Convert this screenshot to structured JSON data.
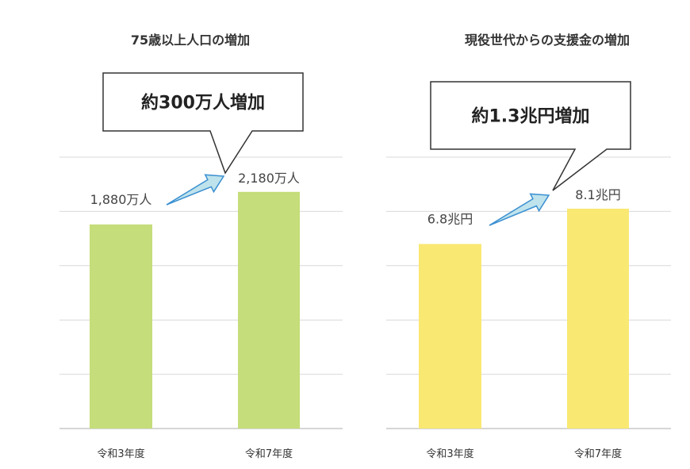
{
  "chart_data": [
    {
      "type": "bar",
      "title": "75歳以上人口の増加",
      "callout": "約300万人増加",
      "categories": [
        "令和3年度",
        "令和7年度"
      ],
      "values": [
        1880,
        2180
      ],
      "value_labels": [
        "1,880万人",
        "2,180万人"
      ],
      "unit": "万人",
      "ylim": [
        0,
        2500
      ],
      "grid": true,
      "color": "#c5dd7a",
      "xlabel": "",
      "ylabel": ""
    },
    {
      "type": "bar",
      "title": "現役世代からの支援金の増加",
      "callout": "約1.3兆円増加",
      "categories": [
        "令和3年度",
        "令和7年度"
      ],
      "values": [
        6.8,
        8.1
      ],
      "value_labels": [
        "6.8兆円",
        "8.1兆円"
      ],
      "unit": "兆円",
      "ylim": [
        0,
        10
      ],
      "grid": true,
      "color": "#f9e872",
      "xlabel": "",
      "ylabel": ""
    }
  ],
  "colors": {
    "grid": "#d9d9d9",
    "arrow_fill": "#bfe3ec",
    "arrow_stroke": "#3a8fd1"
  }
}
